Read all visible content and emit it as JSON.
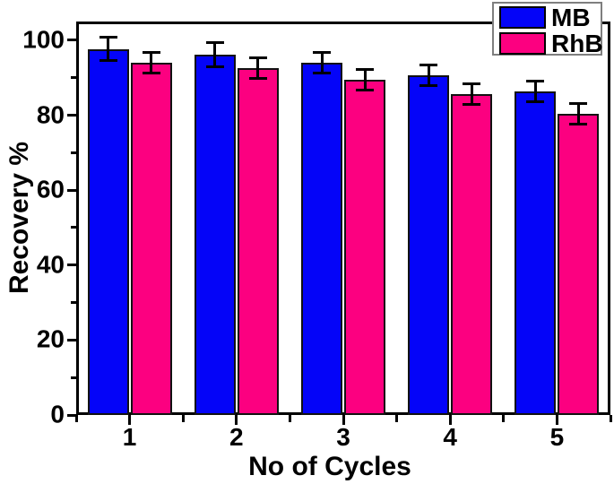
{
  "figure": {
    "background_color": "#ffffff",
    "frame_color": "#000000",
    "text_color": "#000000",
    "legend_border_color": "#7f7f7f"
  },
  "chart_data": {
    "type": "bar",
    "title": "",
    "xlabel": "No of Cycles",
    "ylabel": "Recovery %",
    "categories": [
      "1",
      "2",
      "3",
      "4",
      "5"
    ],
    "series": [
      {
        "name": "MB",
        "color": "#0404f8",
        "values": [
          97.7,
          96.2,
          94.0,
          90.6,
          86.3
        ],
        "errors": [
          3.1,
          3.2,
          2.8,
          2.7,
          2.8
        ]
      },
      {
        "name": "RhB",
        "color": "#fc0080",
        "values": [
          94.0,
          92.6,
          89.5,
          85.6,
          80.4
        ],
        "errors": [
          2.8,
          2.7,
          2.8,
          2.7,
          2.7
        ]
      }
    ],
    "ylim": [
      0,
      105
    ],
    "y_major_ticks": [
      0,
      20,
      40,
      60,
      80,
      100
    ],
    "y_minor_ticks": [
      10,
      30,
      50,
      70,
      90
    ],
    "error_bar_color": "#000000",
    "legend_position": "top-right",
    "grid": false
  }
}
